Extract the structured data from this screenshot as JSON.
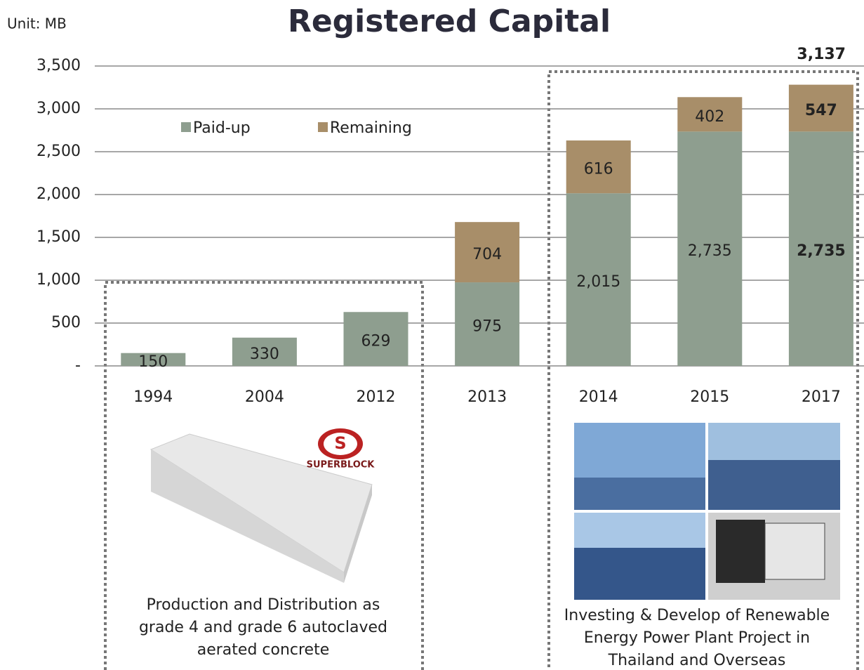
{
  "chart_data": {
    "type": "bar",
    "stacked": true,
    "title": "Registered Capital",
    "unit_label": "Unit: MB",
    "categories": [
      "1994",
      "2004",
      "2012",
      "2013",
      "2014",
      "2015",
      "2017"
    ],
    "series": [
      {
        "name": "Paid-up",
        "color": "#8e9e8f",
        "values": [
          150,
          330,
          629,
          975,
          2015,
          2735,
          2735
        ],
        "value_labels": [
          "150",
          "330",
          "629",
          "975",
          "2,015",
          "2,735",
          "2,735"
        ]
      },
      {
        "name": "Remaining",
        "color": "#a88e69",
        "values": [
          null,
          null,
          null,
          704,
          616,
          402,
          547
        ],
        "value_labels": [
          null,
          null,
          null,
          "704",
          "616",
          "402",
          "547"
        ]
      }
    ],
    "ylim": [
      0,
      3500
    ],
    "yticks": [
      {
        "value": 0,
        "label": "-"
      },
      500,
      {
        "value": 1000,
        "label": "1,000"
      },
      {
        "value": 1500,
        "label": "1,500"
      },
      {
        "value": 2000,
        "label": "2,000"
      },
      {
        "value": 2500,
        "label": "2,500"
      },
      {
        "value": 3000,
        "label": "3,000"
      },
      {
        "value": 3500,
        "label": "3,500"
      }
    ],
    "grid": true,
    "legend": "upper left",
    "annotations": [
      {
        "text": "3,137"
      }
    ]
  },
  "panels": [
    {
      "logo": "SUPERBLOCK",
      "caption": [
        "Production and Distribution as",
        "grade 4 and grade 6 autoclaved",
        "aerated concrete"
      ]
    },
    {
      "caption": [
        "Investing & Develop of Renewable",
        "Energy Power Plant Project in",
        "Thailand and Overseas"
      ]
    }
  ]
}
